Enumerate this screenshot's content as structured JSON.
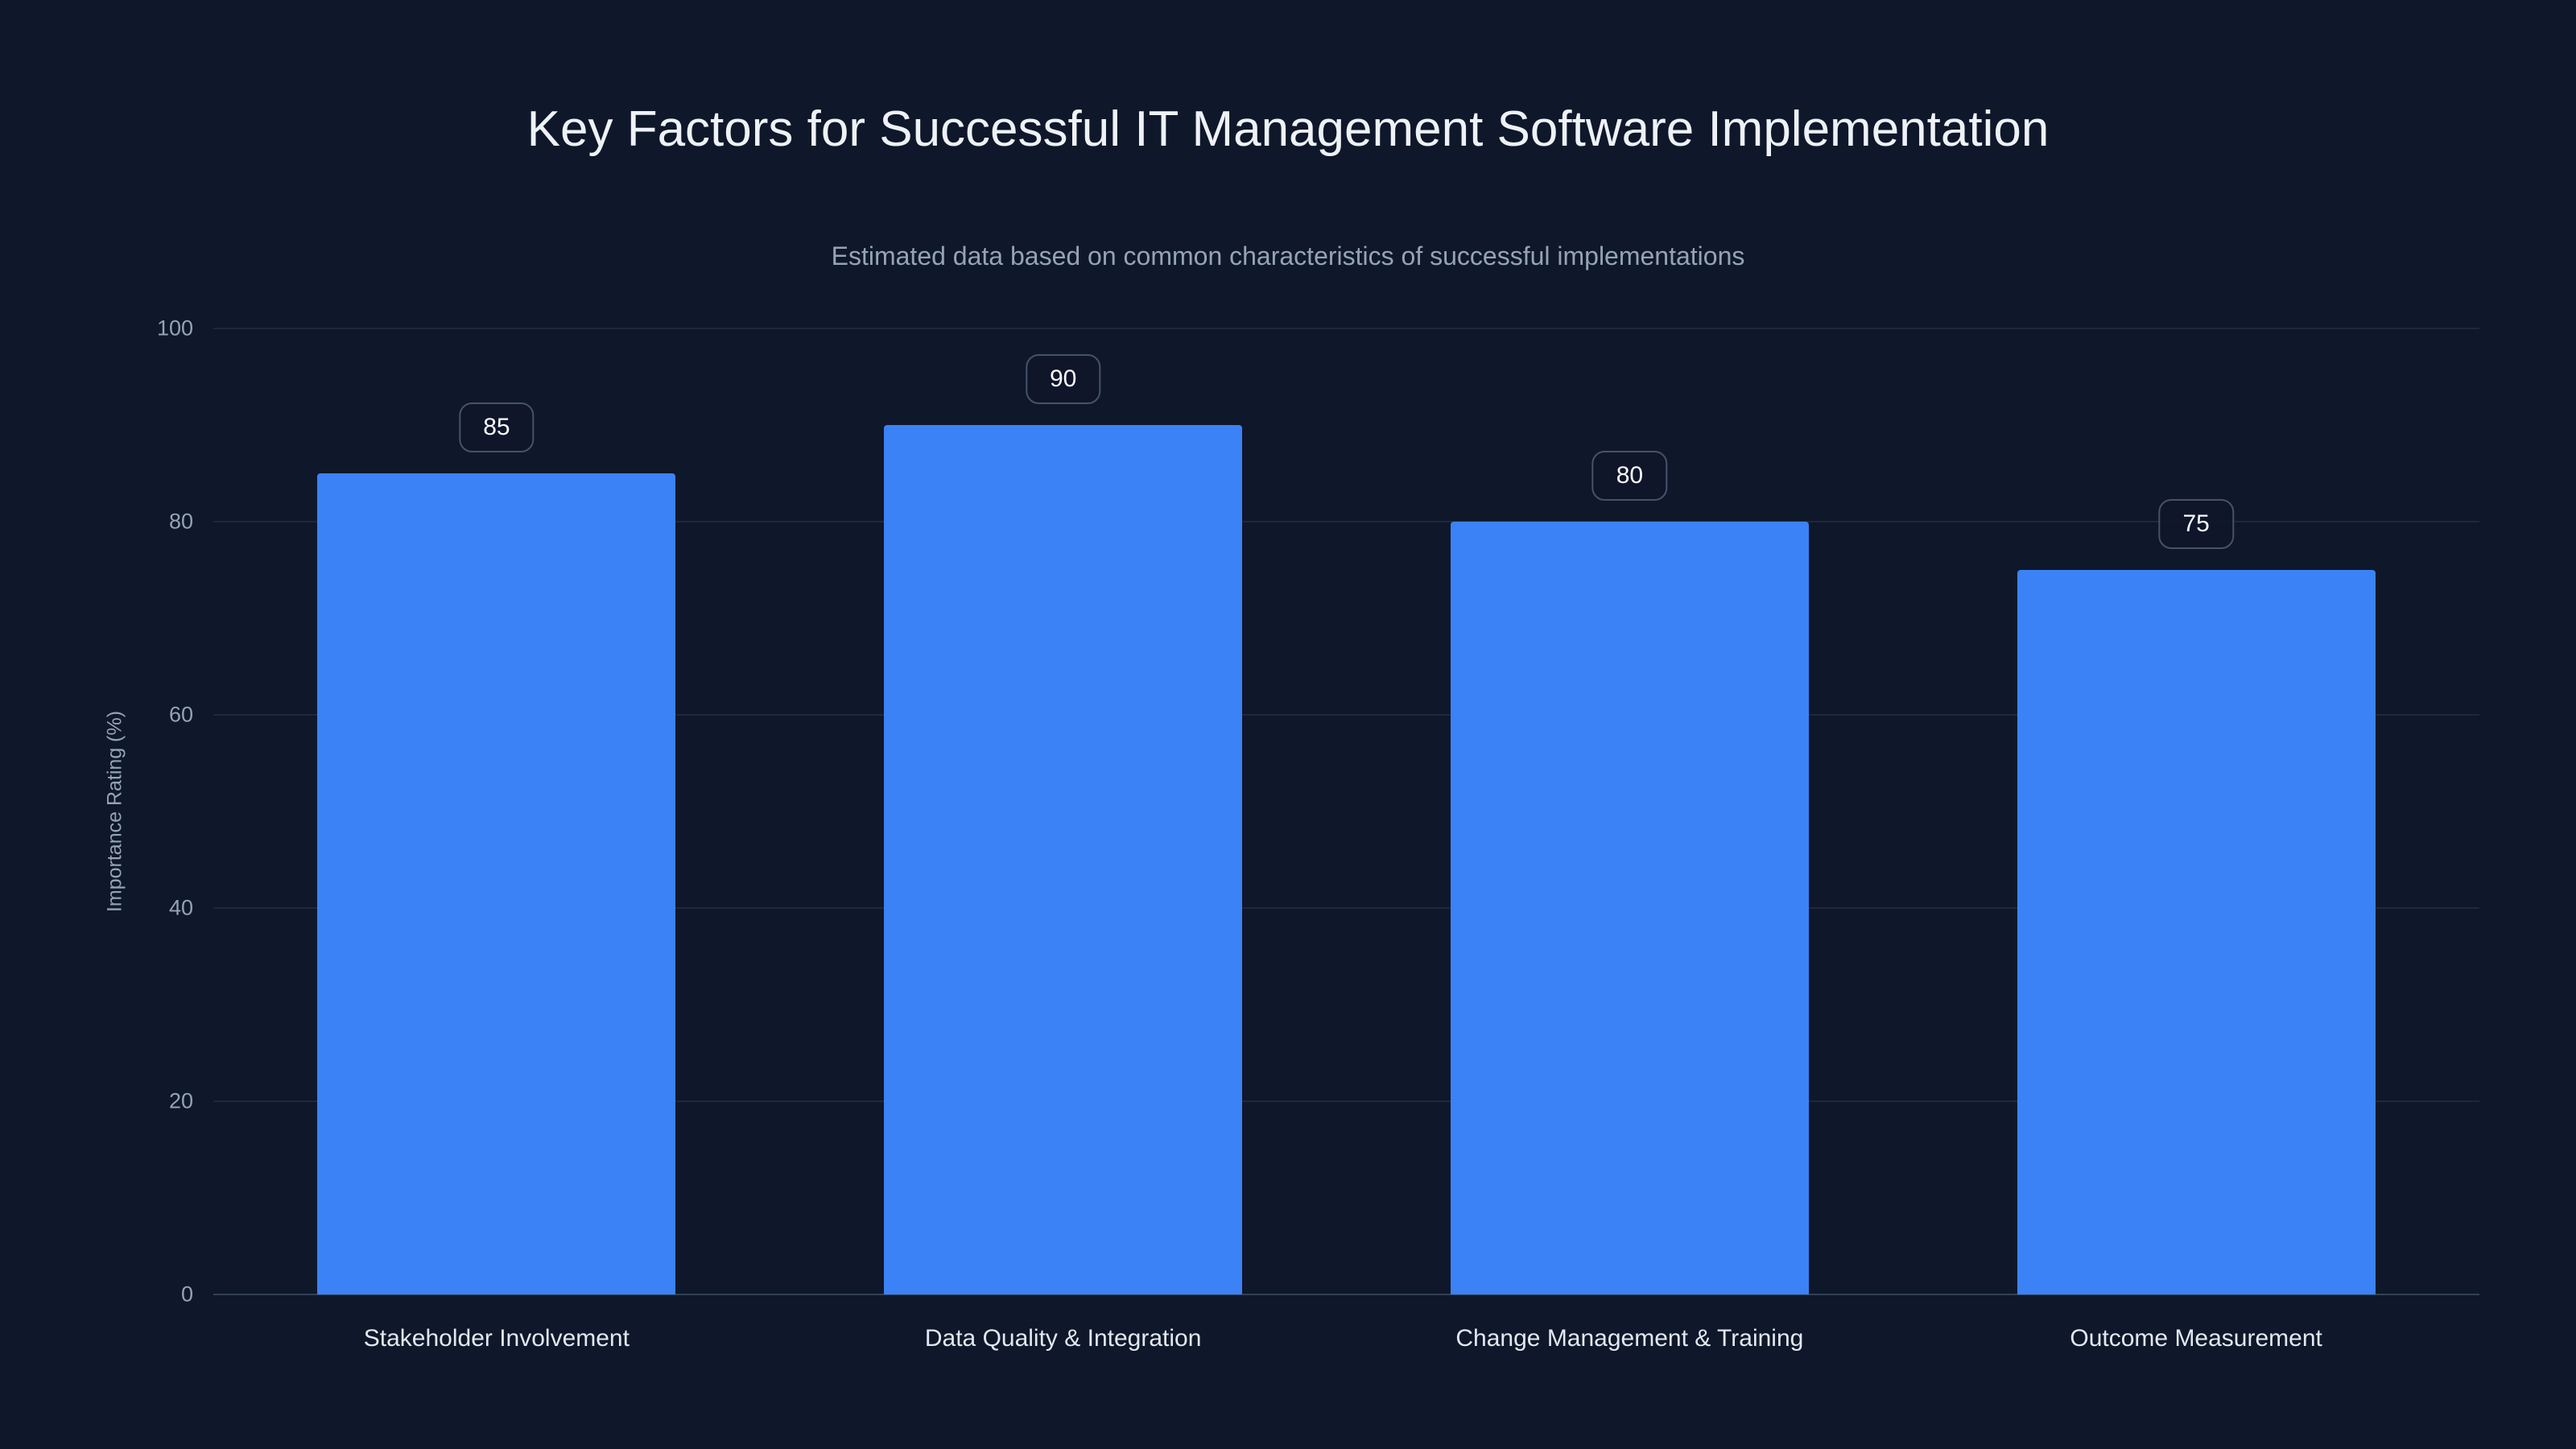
{
  "chart_data": {
    "type": "bar",
    "title": "Key Factors for Successful IT Management Software Implementation",
    "subtitle": "Estimated data based on common characteristics of successful implementations",
    "categories": [
      "Stakeholder Involvement",
      "Data Quality & Integration",
      "Change Management & Training",
      "Outcome Measurement"
    ],
    "values": [
      85,
      90,
      80,
      75
    ],
    "value_labels": [
      "85",
      "90",
      "80",
      "75"
    ],
    "xlabel": "",
    "ylabel": "Importance Rating (%)",
    "ylim": [
      0,
      100
    ],
    "yticks": [
      0,
      20,
      40,
      60,
      80,
      100
    ],
    "grid": true,
    "legend": "none",
    "colors": {
      "background": "#0f172a",
      "bar": "#3b82f6",
      "gridline": "#1e293b",
      "axis_line": "#334155",
      "title_text": "#eef2f7",
      "subtitle_text": "#94a3b8",
      "tick_text": "#94a3b8",
      "category_text": "#e2e8f0",
      "badge_border": "#46526b",
      "badge_text": "#f8fafc"
    }
  }
}
